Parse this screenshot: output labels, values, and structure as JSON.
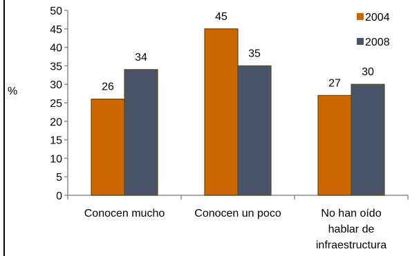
{
  "chart_data": {
    "type": "bar",
    "ylabel": "%",
    "ylim": [
      0,
      50
    ],
    "yticks": [
      0,
      5,
      10,
      15,
      20,
      25,
      30,
      35,
      40,
      45,
      50
    ],
    "categories": [
      [
        "Conocen mucho"
      ],
      [
        "Conocen un poco"
      ],
      [
        "No han oído",
        "hablar de",
        "infraestructura"
      ]
    ],
    "series": [
      {
        "name": "2004",
        "values": [
          26,
          45,
          27
        ],
        "color": "#cc6600"
      },
      {
        "name": "2008",
        "values": [
          34,
          35,
          30
        ],
        "color": "#4a5468"
      }
    ],
    "legend": "top-right",
    "grid": false
  }
}
